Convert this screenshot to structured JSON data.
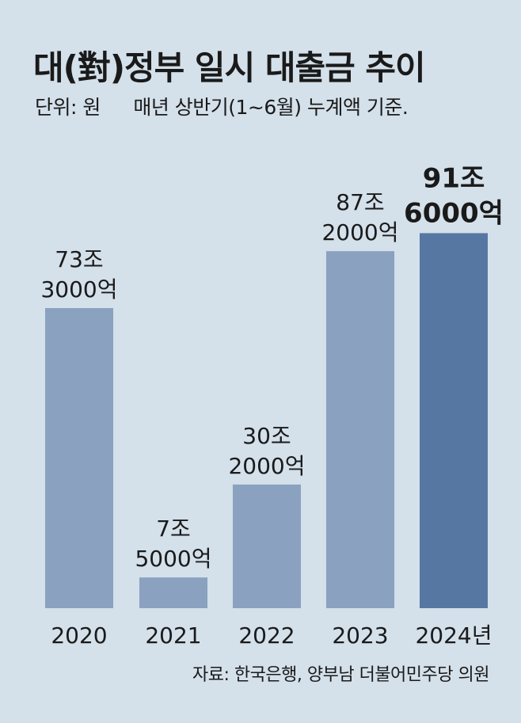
{
  "chart_data": {
    "type": "bar",
    "title": "대(對)정부 일시 대출금 추이",
    "unit_label": "단위: 원",
    "subtitle": "매년 상반기(1~6월) 누계액 기준.",
    "categories": [
      "2020",
      "2021",
      "2022",
      "2023",
      "2024년"
    ],
    "values": [
      73.3,
      7.5,
      30.2,
      87.2,
      91.6
    ],
    "value_unit": "조 원",
    "data_labels": [
      [
        "73조",
        "3000억"
      ],
      [
        "7조",
        "5000억"
      ],
      [
        "30조",
        "2000억"
      ],
      [
        "87조",
        "2000억"
      ],
      [
        "91조",
        "6000억"
      ]
    ],
    "highlight_index": 4,
    "colors": {
      "bar": "#8aa1bf",
      "highlight": "#5677a1",
      "background": "#d4e0ea"
    },
    "ylim": [
      0,
      100
    ],
    "grid": false,
    "source": "자료: 한국은행, 양부남 더불어민주당 의원"
  }
}
